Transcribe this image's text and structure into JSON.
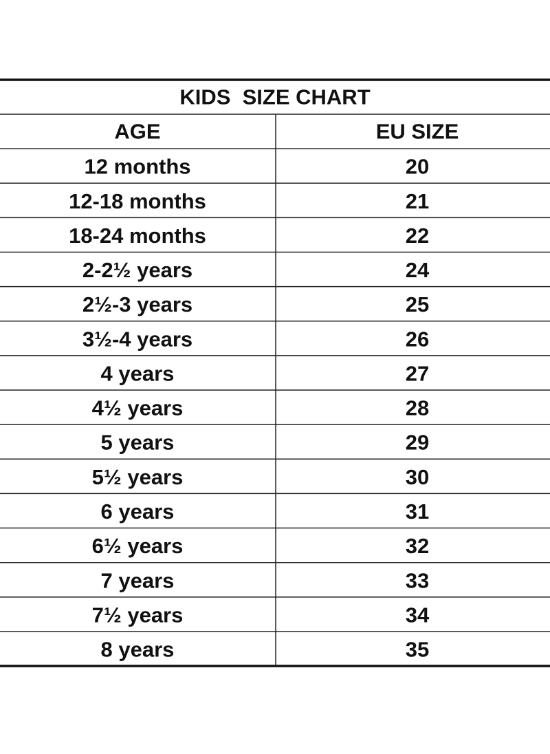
{
  "table": {
    "title": "KIDS  SIZE CHART",
    "header": [
      "AGE",
      "EU SIZE"
    ],
    "rows": [
      [
        "12 months",
        20
      ],
      [
        "12-18 months",
        21
      ],
      [
        "18-24 months",
        22
      ],
      [
        "2-2½ years",
        24
      ],
      [
        "2½-3 years",
        25
      ],
      [
        "3½-4 years",
        26
      ],
      [
        "4 years",
        27
      ],
      [
        "4½ years",
        28
      ],
      [
        "5 years",
        29
      ],
      [
        "5½ years",
        30
      ],
      [
        "6 years",
        31
      ],
      [
        "6½ years",
        32
      ],
      [
        "7 years",
        33
      ],
      [
        "7½ years",
        34
      ],
      [
        "8 years",
        35
      ]
    ]
  }
}
